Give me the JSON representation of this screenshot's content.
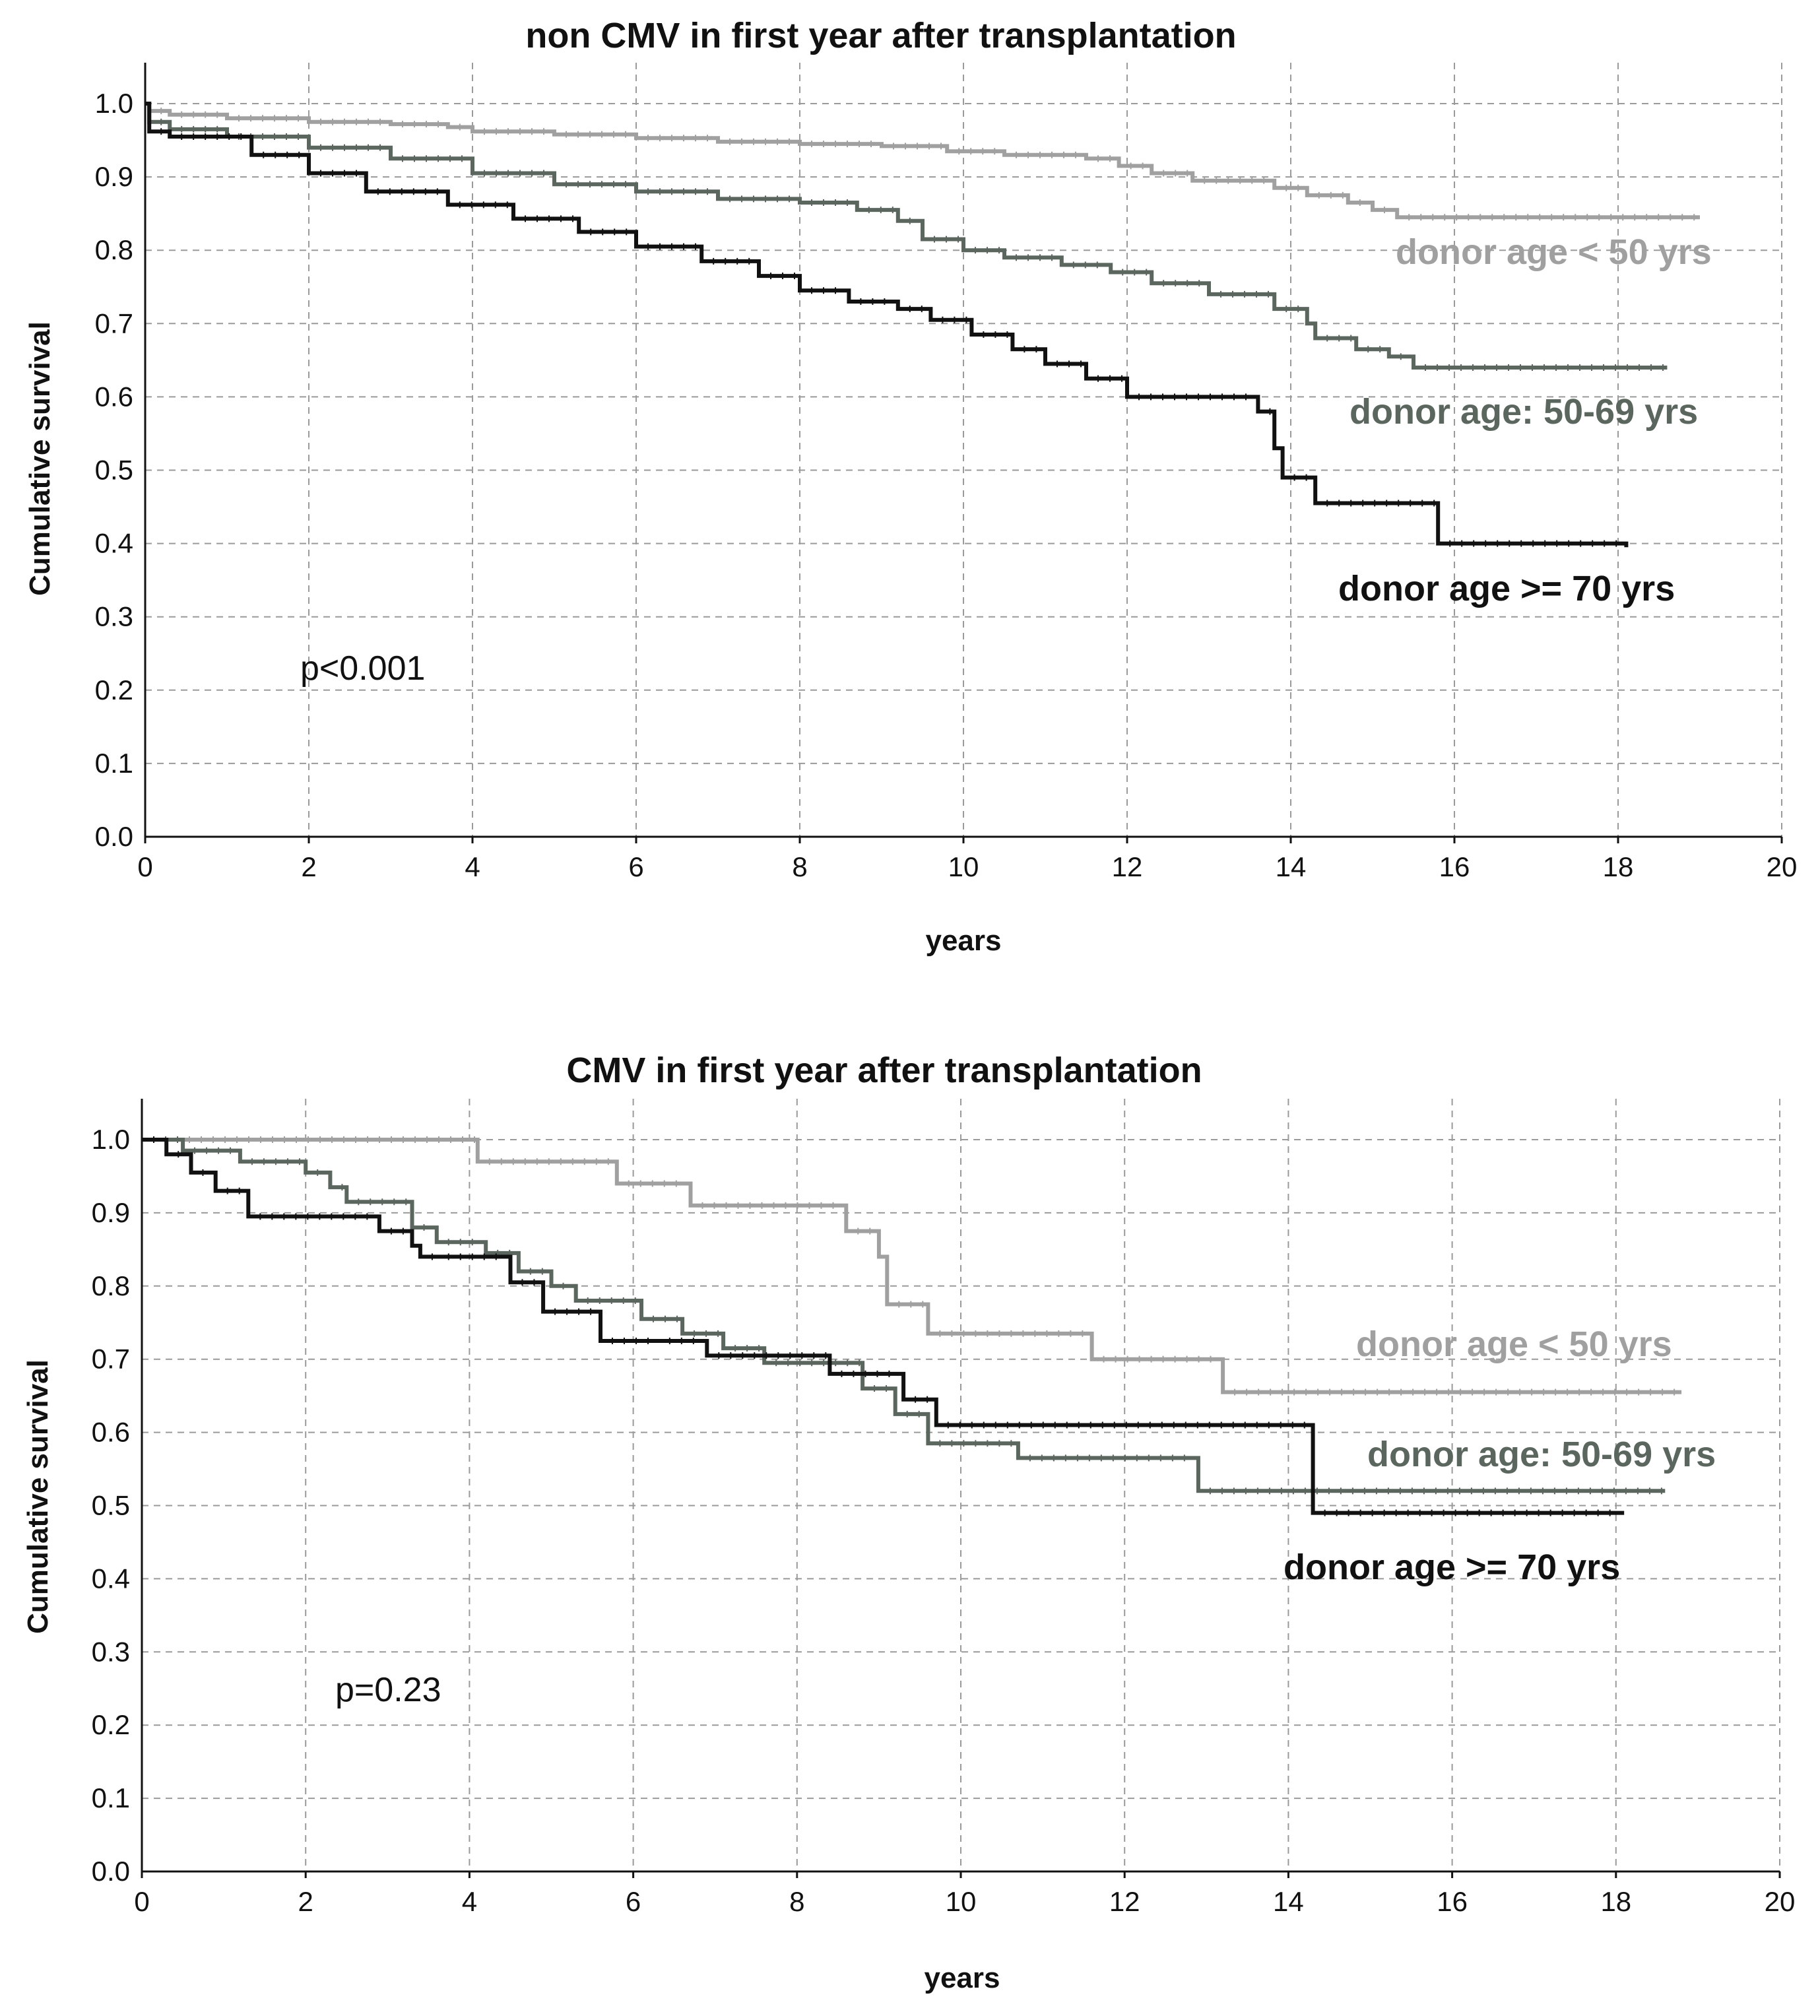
{
  "chart_data": [
    {
      "type": "line",
      "title": "non CMV in first year after transplantation",
      "xlabel": "years",
      "ylabel": "Cumulative survival",
      "xlim": [
        0,
        20
      ],
      "ylim": [
        0,
        1.0
      ],
      "xticks": [
        "0",
        "2",
        "4",
        "6",
        "8",
        "10",
        "12",
        "14",
        "16",
        "18",
        "20"
      ],
      "yticks": [
        "0.0",
        "0.1",
        "0.2",
        "0.3",
        "0.4",
        "0.5",
        "0.6",
        "0.7",
        "0.8",
        "0.9",
        "1.0"
      ],
      "grid": true,
      "annotation": "p<0.001",
      "series": [
        {
          "name": "donor age < 50 yrs",
          "color": "#a0a0a0",
          "x": [
            0,
            0.05,
            0.3,
            1,
            2,
            3,
            3.7,
            4,
            5,
            6,
            7,
            8,
            9,
            9.8,
            10.5,
            11.5,
            11.9,
            12.3,
            12.8,
            13.8,
            14.2,
            14.7,
            15.0,
            15.3,
            19.0
          ],
          "y": [
            1.0,
            0.99,
            0.985,
            0.98,
            0.975,
            0.972,
            0.968,
            0.962,
            0.958,
            0.953,
            0.948,
            0.945,
            0.942,
            0.935,
            0.93,
            0.925,
            0.915,
            0.905,
            0.895,
            0.885,
            0.875,
            0.865,
            0.855,
            0.845,
            0.845
          ]
        },
        {
          "name": "donor age: 50-69 yrs",
          "color": "#5a665e",
          "x": [
            0,
            0.05,
            0.3,
            1,
            2,
            3,
            4,
            5,
            6,
            7,
            8,
            8.7,
            9.2,
            9.5,
            10.0,
            10.5,
            11.2,
            11.8,
            12.3,
            13.0,
            13.8,
            14.2,
            14.3,
            14.8,
            15.2,
            15.5,
            18.6
          ],
          "y": [
            1.0,
            0.975,
            0.965,
            0.955,
            0.94,
            0.925,
            0.905,
            0.89,
            0.88,
            0.87,
            0.865,
            0.855,
            0.84,
            0.815,
            0.8,
            0.79,
            0.78,
            0.77,
            0.755,
            0.74,
            0.72,
            0.7,
            0.68,
            0.665,
            0.655,
            0.64,
            0.64
          ]
        },
        {
          "name": "donor age >= 70 yrs",
          "color": "#111111",
          "x": [
            0,
            0.05,
            0.3,
            1.3,
            2,
            2.7,
            3.7,
            4.5,
            5.3,
            6,
            6.8,
            7.5,
            8,
            8.6,
            9.2,
            9.6,
            10.1,
            10.6,
            11.0,
            11.5,
            12.0,
            13.6,
            13.8,
            13.9,
            14.3,
            15.8,
            18.1
          ],
          "y": [
            1.0,
            0.962,
            0.955,
            0.93,
            0.905,
            0.88,
            0.862,
            0.843,
            0.825,
            0.805,
            0.785,
            0.765,
            0.745,
            0.73,
            0.72,
            0.705,
            0.685,
            0.665,
            0.645,
            0.625,
            0.6,
            0.58,
            0.53,
            0.49,
            0.455,
            0.4,
            0.395
          ]
        }
      ],
      "legend_labels": [
        {
          "text": "donor age < 50 yrs",
          "color": "#a0a0a0"
        },
        {
          "text": "donor age: 50-69 yrs",
          "color": "#5a665e"
        },
        {
          "text": "donor age >= 70 yrs",
          "color": "#111111"
        }
      ]
    },
    {
      "type": "line",
      "title": "CMV in first year after transplantation",
      "xlabel": "years",
      "ylabel": "Cumulative survival",
      "xlim": [
        0,
        20
      ],
      "ylim": [
        0,
        1.0
      ],
      "xticks": [
        "0",
        "2",
        "4",
        "6",
        "8",
        "10",
        "12",
        "14",
        "16",
        "18",
        "20"
      ],
      "yticks": [
        "0.0",
        "0.1",
        "0.2",
        "0.3",
        "0.4",
        "0.5",
        "0.6",
        "0.7",
        "0.8",
        "0.9",
        "1.0"
      ],
      "grid": true,
      "annotation": "p=0.23",
      "series": [
        {
          "name": "donor age < 50 yrs",
          "color": "#a0a0a0",
          "x": [
            0,
            4.1,
            5.8,
            6.7,
            8.6,
            9.0,
            9.1,
            9.6,
            11.6,
            13.2,
            18.8
          ],
          "y": [
            1.0,
            0.97,
            0.94,
            0.91,
            0.875,
            0.84,
            0.775,
            0.735,
            0.7,
            0.655,
            0.655
          ]
        },
        {
          "name": "donor age: 50-69 yrs",
          "color": "#5a665e",
          "x": [
            0,
            0.5,
            1.2,
            2.0,
            2.3,
            2.5,
            3.3,
            3.6,
            4.2,
            4.6,
            5.0,
            5.3,
            6.1,
            6.6,
            7.1,
            7.6,
            8.8,
            9.2,
            9.6,
            10.7,
            12.9,
            18.6
          ],
          "y": [
            1.0,
            0.985,
            0.97,
            0.955,
            0.935,
            0.915,
            0.88,
            0.86,
            0.845,
            0.82,
            0.8,
            0.78,
            0.755,
            0.735,
            0.715,
            0.695,
            0.66,
            0.625,
            0.585,
            0.565,
            0.52,
            0.52
          ]
        },
        {
          "name": "donor age >= 70 yrs",
          "color": "#111111",
          "x": [
            0,
            0.3,
            0.6,
            0.9,
            1.3,
            2.9,
            3.3,
            3.4,
            3.6,
            4.5,
            4.9,
            5.6,
            6.3,
            6.9,
            8.4,
            9.3,
            9.7,
            14.3,
            18.1
          ],
          "y": [
            1.0,
            0.98,
            0.955,
            0.93,
            0.895,
            0.875,
            0.855,
            0.84,
            0.84,
            0.805,
            0.765,
            0.725,
            0.725,
            0.705,
            0.68,
            0.645,
            0.61,
            0.49,
            0.49
          ]
        }
      ],
      "legend_labels": [
        {
          "text": "donor age < 50 yrs",
          "color": "#a0a0a0"
        },
        {
          "text": "donor age: 50-69 yrs",
          "color": "#5a665e"
        },
        {
          "text": "donor age >= 70 yrs",
          "color": "#111111"
        }
      ]
    }
  ]
}
